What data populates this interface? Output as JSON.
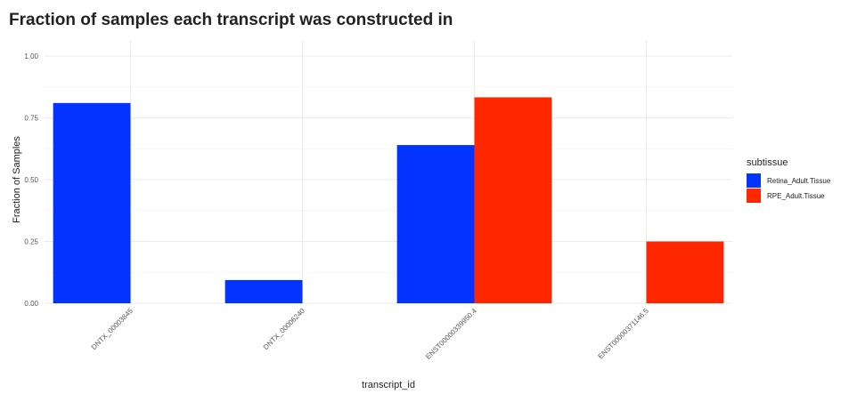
{
  "chart_data": {
    "type": "bar",
    "title": "Fraction of samples each transcript was constructed in",
    "xlabel": "transcript_id",
    "ylabel": "Fraction of Samples",
    "categories": [
      "DNTX_00003845",
      "DNTX_00006240",
      "ENST00000339950.4",
      "ENST00000371146.5"
    ],
    "series": [
      {
        "name": "Retina_Adult.Tissue",
        "color": "#0433ff",
        "values": [
          0.81,
          0.094,
          0.64,
          null
        ]
      },
      {
        "name": "RPE_Adult.Tissue",
        "color": "#ff2600",
        "values": [
          null,
          null,
          0.833,
          0.25
        ]
      }
    ],
    "yticks": [
      "0.00",
      "0.25",
      "0.50",
      "0.75",
      "1.00"
    ],
    "ylim": [
      0,
      1.0
    ],
    "legend": {
      "title": "subtissue",
      "placement": "right"
    },
    "grid": true
  }
}
